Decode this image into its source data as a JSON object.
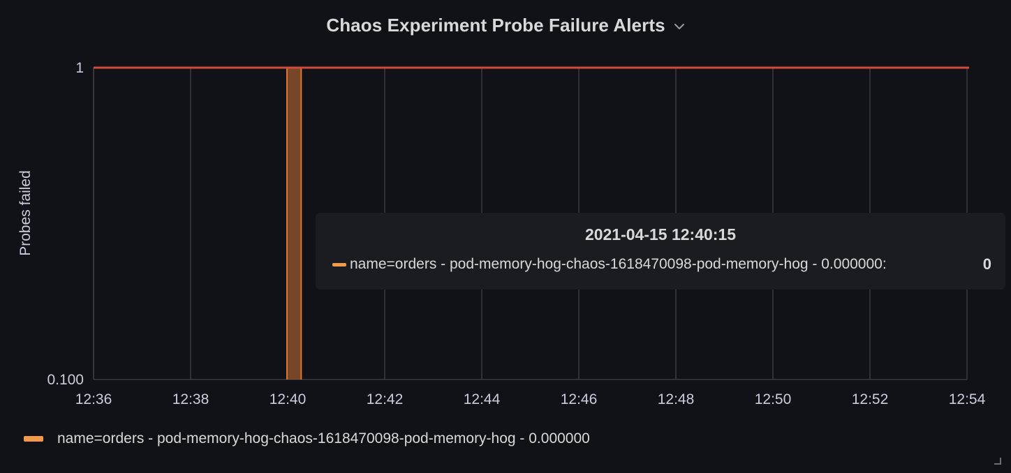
{
  "panel": {
    "title": "Chaos Experiment Probe Failure Alerts",
    "menu_icon": "chevron-down-icon"
  },
  "colors": {
    "background": "#111217",
    "grid": "#3a3b40",
    "series_line": "#e0752d",
    "series_fill": "#8a4f2c",
    "threshold_line": "#d44a3a",
    "legend_swatch": "#f2994a",
    "text": "#ccccdc"
  },
  "chart_data": {
    "type": "area",
    "title": "Chaos Experiment Probe Failure Alerts",
    "xlabel": "",
    "ylabel": "Probes failed",
    "y_scale": "log",
    "ylim": [
      0.1,
      1
    ],
    "y_ticks": [
      "1",
      "0.100"
    ],
    "x_ticks": [
      "12:36",
      "12:38",
      "12:40",
      "12:42",
      "12:44",
      "12:46",
      "12:48",
      "12:50",
      "12:52",
      "12:54"
    ],
    "xlim": [
      "12:36",
      "12:54"
    ],
    "grid": true,
    "legend_position": "bottom-left",
    "series": [
      {
        "name": "name=orders - pod-memory-hog-chaos-1618470098-pod-memory-hog - 0.000000",
        "spikes": [
          {
            "start": "12:40:00",
            "end": "12:40:15",
            "value": 1
          }
        ]
      }
    ],
    "threshold": {
      "value": 1
    }
  },
  "tooltip": {
    "time": "2021-04-15 12:40:15",
    "label": "name=orders - pod-memory-hog-chaos-1618470098-pod-memory-hog - 0.000000:",
    "value": "0"
  },
  "legend": {
    "items": [
      {
        "label": "name=orders - pod-memory-hog-chaos-1618470098-pod-memory-hog - 0.000000"
      }
    ]
  },
  "resize_icon": "resize-handle-icon"
}
